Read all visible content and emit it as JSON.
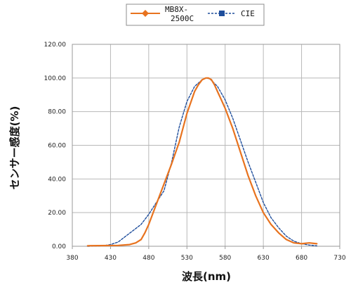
{
  "chart_data": {
    "type": "line",
    "xlabel": "波長(nm)",
    "ylabel": "センサー感度(%)",
    "xlim": [
      380,
      730
    ],
    "ylim": [
      0,
      120
    ],
    "x_ticks": [
      "380",
      "430",
      "480",
      "530",
      "580",
      "630",
      "680",
      "730"
    ],
    "y_ticks": [
      "0.00",
      "20.00",
      "40.00",
      "60.00",
      "80.00",
      "100.00",
      "120.00"
    ],
    "grid": true,
    "legend_position": "top",
    "series": [
      {
        "name": "MB8X-2500C",
        "name_lines": [
          "MB8X-",
          "2500C"
        ],
        "color": "#e8731f",
        "marker": "diamond",
        "line_style": "solid",
        "x": [
          400,
          440,
          455,
          463,
          470,
          475,
          480,
          485,
          490,
          500,
          510,
          520,
          530,
          540,
          545,
          550,
          555,
          558,
          562,
          566,
          570,
          575,
          580,
          590,
          600,
          610,
          620,
          630,
          640,
          650,
          660,
          670,
          680,
          690,
          700
        ],
        "y": [
          0.3,
          0.5,
          1,
          2,
          4,
          8,
          13,
          19,
          25,
          37,
          49,
          62,
          79,
          92,
          96,
          99,
          100,
          100,
          99,
          96,
          92,
          87,
          82,
          70,
          56,
          42,
          30,
          20,
          13,
          8,
          4,
          2,
          1.5,
          2,
          1.5
        ]
      },
      {
        "name": "CIE",
        "color": "#1f4e9c",
        "marker": "square",
        "line_style": "dashed",
        "x": [
          400,
          420,
          430,
          440,
          450,
          460,
          470,
          480,
          490,
          500,
          510,
          520,
          530,
          540,
          550,
          555,
          560,
          570,
          580,
          590,
          600,
          610,
          620,
          630,
          640,
          650,
          660,
          670,
          680,
          690,
          700
        ],
        "y": [
          0,
          0.3,
          1,
          2.5,
          6,
          9.5,
          13,
          19,
          26,
          33,
          50,
          71,
          86,
          95,
          99,
          100,
          99.5,
          95,
          87,
          76,
          63,
          50,
          38,
          26,
          17,
          11,
          6,
          3,
          1.5,
          0.7,
          0.3
        ]
      }
    ]
  }
}
